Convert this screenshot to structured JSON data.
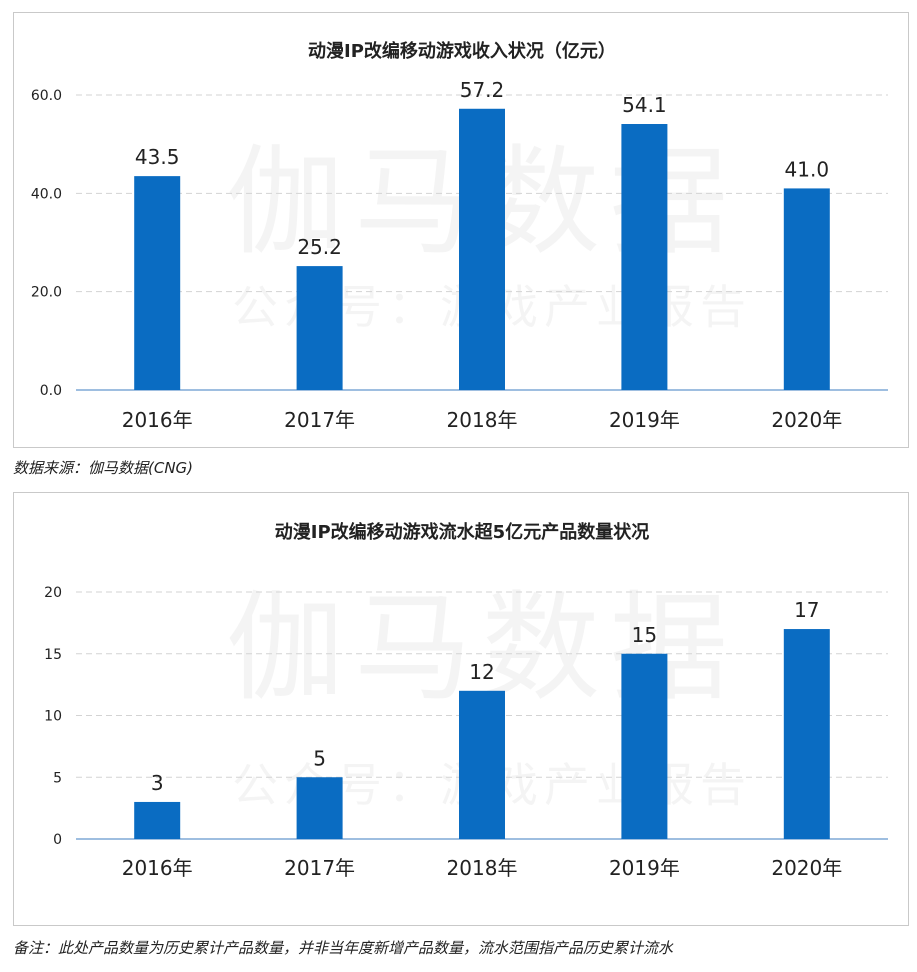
{
  "watermark": {
    "main": "伽马数据",
    "sub": "公众号：游戏产业报告"
  },
  "colors": {
    "bar": "#0a6cc2",
    "grid": "#d3d3d3",
    "axis": "#7fa9d6"
  },
  "chart_data": [
    {
      "type": "bar",
      "title": "动漫IP改编移动游戏收入状况（亿元）",
      "categories": [
        "2016年",
        "2017年",
        "2018年",
        "2019年",
        "2020年"
      ],
      "values": [
        43.5,
        25.2,
        57.2,
        54.1,
        41.0
      ],
      "value_labels": [
        "43.5",
        "25.2",
        "57.2",
        "54.1",
        "41.0"
      ],
      "yticks": [
        "0.0",
        "20.0",
        "40.0",
        "60.0"
      ],
      "ylim": [
        0,
        60
      ],
      "grid": true,
      "legend": "none"
    },
    {
      "type": "bar",
      "title": "动漫IP改编移动游戏流水超5亿元产品数量状况",
      "categories": [
        "2016年",
        "2017年",
        "2018年",
        "2019年",
        "2020年"
      ],
      "values": [
        3,
        5,
        12,
        15,
        17
      ],
      "value_labels": [
        "3",
        "5",
        "12",
        "15",
        "17"
      ],
      "yticks": [
        "0",
        "5",
        "10",
        "15",
        "20"
      ],
      "ylim": [
        0,
        20
      ],
      "grid": true,
      "legend": "none"
    }
  ],
  "captions": {
    "chart1": "数据来源：伽马数据(CNG)",
    "chart2": "备注：此处产品数量为历史累计产品数量，并非当年度新增产品数量，流水范围指产品历史累计流水"
  }
}
